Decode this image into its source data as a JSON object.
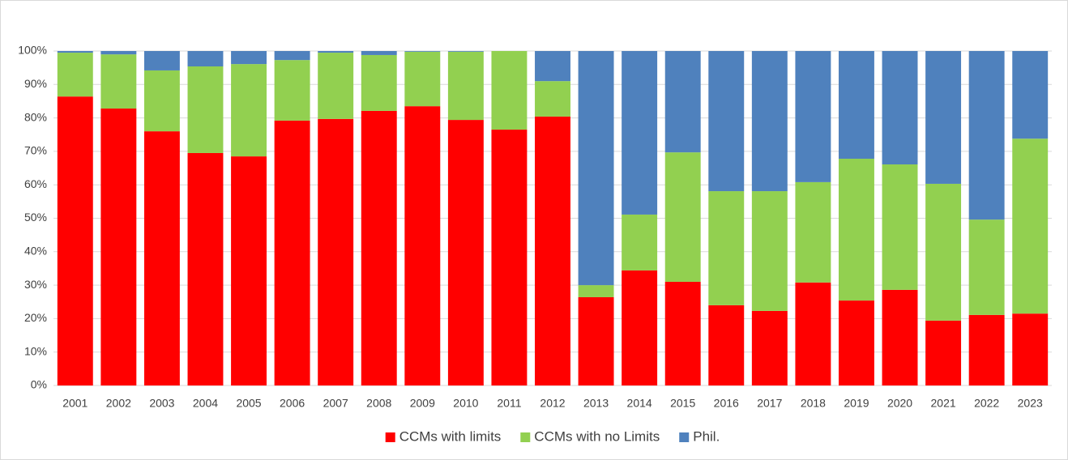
{
  "chart_data": {
    "type": "bar",
    "stacked": true,
    "legend": "bottom",
    "grid": true,
    "categories": [
      "2001",
      "2002",
      "2003",
      "2004",
      "2005",
      "2006",
      "2007",
      "2008",
      "2009",
      "2010",
      "2011",
      "2012",
      "2013",
      "2014",
      "2015",
      "2016",
      "2017",
      "2018",
      "2019",
      "2020",
      "2021",
      "2022",
      "2023"
    ],
    "series": [
      {
        "name": "CCMs with limits",
        "color": "#ff0000",
        "values": [
          86.4,
          82.8,
          76.0,
          69.5,
          68.5,
          79.2,
          79.7,
          82.1,
          83.5,
          79.4,
          76.5,
          80.4,
          26.4,
          34.4,
          31.0,
          24.0,
          22.3,
          30.8,
          25.4,
          28.6,
          19.4,
          21.1,
          21.5
        ]
      },
      {
        "name": "CCMs with no Limits",
        "color": "#92d050",
        "values": [
          13.1,
          16.2,
          18.2,
          25.9,
          27.6,
          18.1,
          19.8,
          16.7,
          16.3,
          20.4,
          23.5,
          10.6,
          3.6,
          16.7,
          38.7,
          34.1,
          35.8,
          30.0,
          42.4,
          37.5,
          40.9,
          28.5,
          52.3
        ]
      },
      {
        "name": "Phil.",
        "color": "#4f81bd",
        "values": [
          0.5,
          1.0,
          5.8,
          4.6,
          3.9,
          2.7,
          0.5,
          1.2,
          0.2,
          0.2,
          0,
          9.0,
          70.0,
          48.9,
          30.3,
          41.9,
          41.9,
          39.2,
          32.2,
          33.9,
          39.7,
          50.4,
          26.2
        ]
      }
    ],
    "ylim": [
      0,
      100
    ],
    "yticks": [
      {
        "value": 0,
        "label": "0%"
      },
      {
        "value": 10,
        "label": "10%"
      },
      {
        "value": 20,
        "label": "20%"
      },
      {
        "value": 30,
        "label": "30%"
      },
      {
        "value": 40,
        "label": "40%"
      },
      {
        "value": 50,
        "label": "50%"
      },
      {
        "value": 60,
        "label": "60%"
      },
      {
        "value": 70,
        "label": "70%"
      },
      {
        "value": 80,
        "label": "80%"
      },
      {
        "value": 90,
        "label": "90%"
      },
      {
        "value": 100,
        "label": "100%"
      }
    ]
  }
}
